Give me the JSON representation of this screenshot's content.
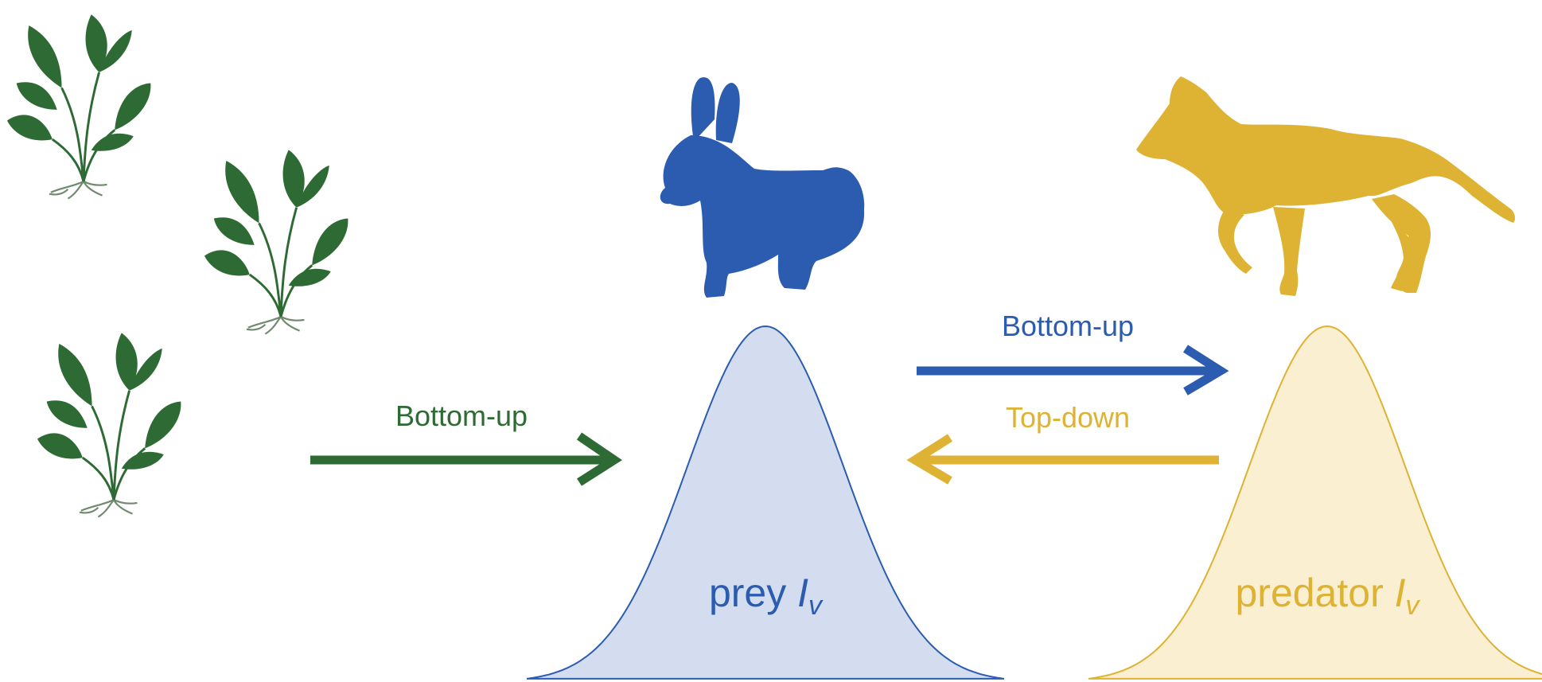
{
  "colors": {
    "plant": "#2e6b34",
    "prey": "#2b5cb0",
    "prey_fill": "#d3ddef",
    "predator": "#deb233",
    "predator_fill": "#faefd0"
  },
  "icons": {
    "plants": "plant-icon",
    "prey": "rabbit-icon",
    "predator": "coyote-icon"
  },
  "arrows": {
    "plant_to_prey": "Bottom-up",
    "prey_to_predator": "Bottom-up",
    "predator_to_prey": "Top-down"
  },
  "distributions": {
    "prey": {
      "label": "prey ",
      "symbol": "I",
      "subscript": "v"
    },
    "predator": {
      "label": "predator ",
      "symbol": "I",
      "subscript": "v"
    }
  }
}
